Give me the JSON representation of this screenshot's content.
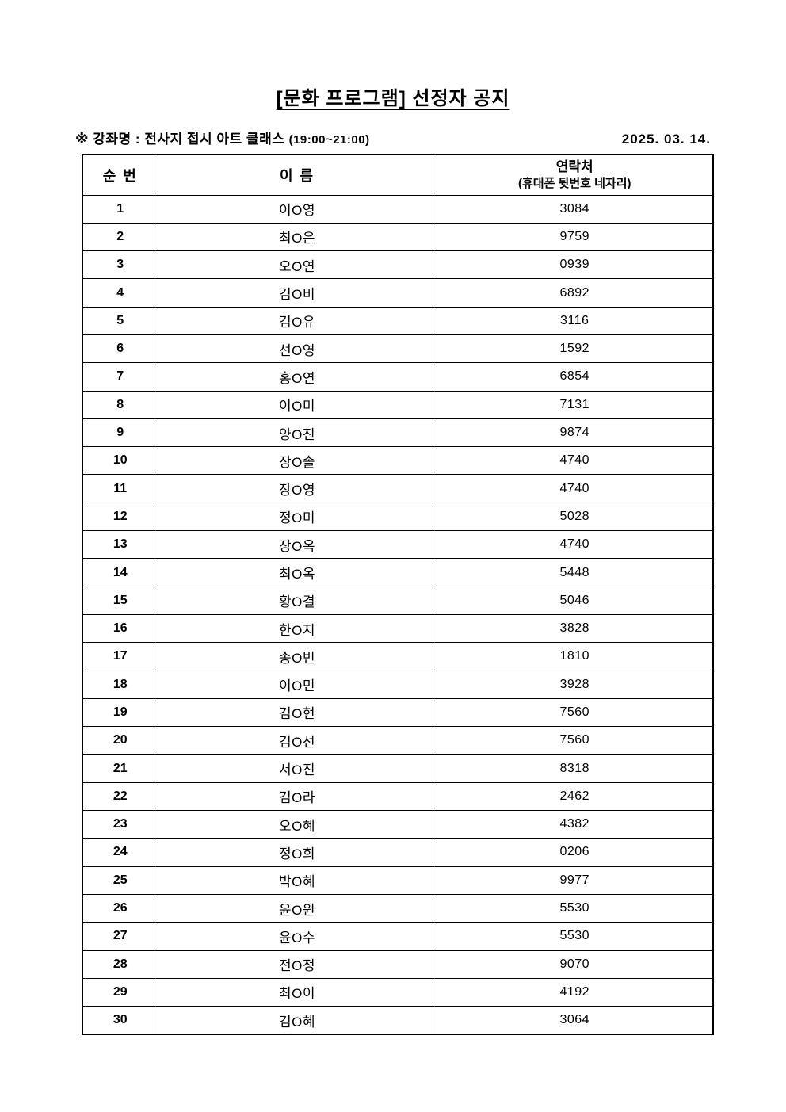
{
  "header": {
    "title": "[문화 프로그램] 선정자 공지",
    "course_label": "※ 강좌명 : 전사지 접시 아트 클래스",
    "course_time": "(19:00~21:00)",
    "date": "2025. 03. 14."
  },
  "table": {
    "headers": {
      "no": "순 번",
      "name": "이 름",
      "contact_line1": "연락처",
      "contact_line2": "(휴대폰 뒷번호 네자리)"
    },
    "rows": [
      {
        "no": "1",
        "name": "이O영",
        "contact": "3084"
      },
      {
        "no": "2",
        "name": "최O은",
        "contact": "9759"
      },
      {
        "no": "3",
        "name": "오O연",
        "contact": "0939"
      },
      {
        "no": "4",
        "name": "김O비",
        "contact": "6892"
      },
      {
        "no": "5",
        "name": "김O유",
        "contact": "3116"
      },
      {
        "no": "6",
        "name": "선O영",
        "contact": "1592"
      },
      {
        "no": "7",
        "name": "홍O연",
        "contact": "6854"
      },
      {
        "no": "8",
        "name": "이O미",
        "contact": "7131"
      },
      {
        "no": "9",
        "name": "양O진",
        "contact": "9874"
      },
      {
        "no": "10",
        "name": "장O솔",
        "contact": "4740"
      },
      {
        "no": "11",
        "name": "장O영",
        "contact": "4740"
      },
      {
        "no": "12",
        "name": "정O미",
        "contact": "5028"
      },
      {
        "no": "13",
        "name": "장O옥",
        "contact": "4740"
      },
      {
        "no": "14",
        "name": "최O옥",
        "contact": "5448"
      },
      {
        "no": "15",
        "name": "황O결",
        "contact": "5046"
      },
      {
        "no": "16",
        "name": "한O지",
        "contact": "3828"
      },
      {
        "no": "17",
        "name": "송O빈",
        "contact": "1810"
      },
      {
        "no": "18",
        "name": "이O민",
        "contact": "3928"
      },
      {
        "no": "19",
        "name": "김O현",
        "contact": "7560"
      },
      {
        "no": "20",
        "name": "김O선",
        "contact": "7560"
      },
      {
        "no": "21",
        "name": "서O진",
        "contact": "8318"
      },
      {
        "no": "22",
        "name": "김O라",
        "contact": "2462"
      },
      {
        "no": "23",
        "name": "오O혜",
        "contact": "4382"
      },
      {
        "no": "24",
        "name": "정O희",
        "contact": "0206"
      },
      {
        "no": "25",
        "name": "박O혜",
        "contact": "9977"
      },
      {
        "no": "26",
        "name": "윤O원",
        "contact": "5530"
      },
      {
        "no": "27",
        "name": "윤O수",
        "contact": "5530"
      },
      {
        "no": "28",
        "name": "전O정",
        "contact": "9070"
      },
      {
        "no": "29",
        "name": "최O이",
        "contact": "4192"
      },
      {
        "no": "30",
        "name": "김O혜",
        "contact": "3064"
      }
    ]
  }
}
